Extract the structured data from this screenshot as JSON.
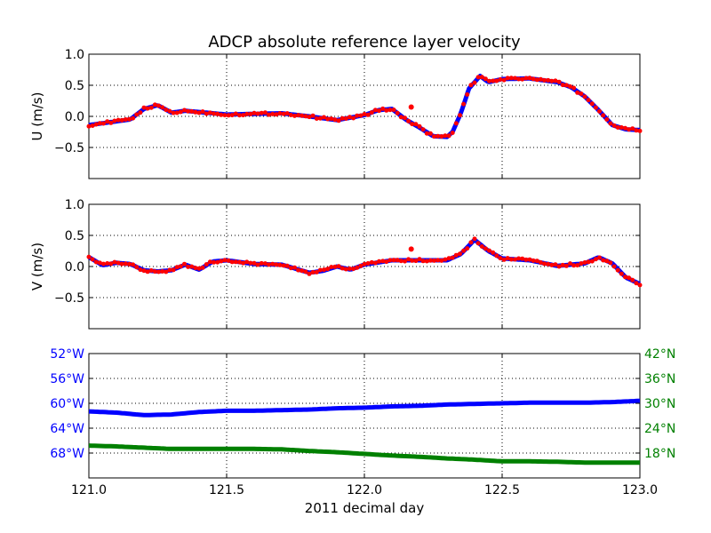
{
  "title": "ADCP absolute reference layer velocity",
  "xlabel": "2011 decimal day",
  "colors": {
    "smooth": "#0000ff",
    "raw": "#ff0000",
    "lon": "#0000ff",
    "lat": "#008000",
    "axis": "#000000"
  },
  "chart_data": [
    {
      "panel": "u",
      "type": "scatter",
      "ylabel": "U (m/s)",
      "xlim": [
        121.0,
        123.0
      ],
      "ylim": [
        -1.0,
        1.0
      ],
      "yticks": [
        -0.5,
        0.0,
        0.5,
        1.0
      ],
      "ytick_labels": [
        "−0.5",
        "0.0",
        "0.5",
        "1.0"
      ],
      "grid": true,
      "series": [
        {
          "style": "dots",
          "color": "#ff0000",
          "x": [
            121.0,
            121.05,
            121.1,
            121.15,
            121.2,
            121.25,
            121.3,
            121.35,
            121.4,
            121.5,
            121.6,
            121.7,
            121.8,
            121.9,
            122.0,
            122.05,
            122.1,
            122.15,
            122.2,
            122.25,
            122.3,
            122.32,
            122.35,
            122.38,
            122.42,
            122.45,
            122.5,
            122.6,
            122.7,
            122.75,
            122.8,
            122.85,
            122.9,
            122.95,
            123.0
          ],
          "y": [
            -0.14,
            -0.11,
            -0.08,
            -0.05,
            0.12,
            0.18,
            0.06,
            0.09,
            0.07,
            0.03,
            0.04,
            0.05,
            0.0,
            -0.06,
            0.02,
            0.1,
            0.12,
            -0.05,
            -0.18,
            -0.32,
            -0.33,
            -0.25,
            0.05,
            0.45,
            0.65,
            0.55,
            0.6,
            0.61,
            0.55,
            0.47,
            0.32,
            0.1,
            -0.14,
            -0.21,
            -0.22
          ]
        },
        {
          "style": "outlier",
          "color": "#ff0000",
          "x": [
            122.17
          ],
          "y": [
            0.15
          ]
        }
      ]
    },
    {
      "panel": "v",
      "type": "scatter",
      "ylabel": "V (m/s)",
      "xlim": [
        121.0,
        123.0
      ],
      "ylim": [
        -1.0,
        1.0
      ],
      "yticks": [
        -0.5,
        0.0,
        0.5,
        1.0
      ],
      "ytick_labels": [
        "−0.5",
        "0.0",
        "0.5",
        "1.0"
      ],
      "grid": true,
      "series": [
        {
          "style": "dots",
          "color": "#ff0000",
          "x": [
            121.0,
            121.05,
            121.1,
            121.15,
            121.2,
            121.25,
            121.3,
            121.35,
            121.4,
            121.45,
            121.5,
            121.6,
            121.7,
            121.8,
            121.85,
            121.9,
            121.95,
            122.0,
            122.1,
            122.2,
            122.3,
            122.35,
            122.4,
            122.45,
            122.5,
            122.6,
            122.7,
            122.8,
            122.85,
            122.9,
            122.95,
            123.0
          ],
          "y": [
            0.15,
            0.02,
            0.06,
            0.04,
            -0.06,
            -0.08,
            -0.06,
            0.03,
            -0.05,
            0.08,
            0.1,
            0.04,
            0.03,
            -0.1,
            -0.07,
            0.0,
            -0.05,
            0.03,
            0.1,
            0.1,
            0.1,
            0.2,
            0.43,
            0.25,
            0.13,
            0.1,
            0.01,
            0.05,
            0.15,
            0.05,
            -0.18,
            -0.28
          ]
        },
        {
          "style": "outlier",
          "color": "#ff0000",
          "x": [
            122.17
          ],
          "y": [
            0.28
          ]
        }
      ]
    },
    {
      "panel": "position",
      "type": "line",
      "xlim": [
        121.0,
        123.0
      ],
      "xticks": [
        121.0,
        121.5,
        122.0,
        122.5,
        123.0
      ],
      "xtick_labels": [
        "121.0",
        "121.5",
        "122.0",
        "122.5",
        "123.0"
      ],
      "grid": true,
      "left_axis": {
        "ylim": [
          72,
          52
        ],
        "yticks": [
          52,
          56,
          60,
          64,
          68
        ],
        "ytick_labels": [
          "52°W",
          "56°W",
          "60°W",
          "64°W",
          "68°W"
        ],
        "color": "#0000ff"
      },
      "right_axis": {
        "ylim": [
          12,
          42
        ],
        "yticks": [
          42,
          36,
          30,
          24,
          18
        ],
        "ytick_labels": [
          "42°N",
          "36°N",
          "30°N",
          "24°N",
          "18°N"
        ],
        "color": "#008000"
      },
      "series": [
        {
          "axis": "left",
          "color": "#0000ff",
          "x": [
            121.0,
            121.1,
            121.2,
            121.3,
            121.4,
            121.5,
            121.6,
            121.7,
            121.8,
            121.9,
            122.0,
            122.1,
            122.2,
            122.3,
            122.4,
            122.5,
            122.6,
            122.7,
            122.8,
            122.9,
            123.0
          ],
          "y": [
            61.3,
            61.5,
            61.9,
            61.8,
            61.4,
            61.2,
            61.2,
            61.1,
            61.0,
            60.8,
            60.7,
            60.5,
            60.4,
            60.2,
            60.1,
            60.0,
            59.9,
            59.9,
            59.9,
            59.8,
            59.6
          ]
        },
        {
          "axis": "right",
          "color": "#008000",
          "x": [
            121.0,
            121.1,
            121.2,
            121.3,
            121.4,
            121.5,
            121.6,
            121.7,
            121.8,
            121.9,
            122.0,
            122.1,
            122.2,
            122.3,
            122.4,
            122.5,
            122.6,
            122.7,
            122.8,
            122.9,
            123.0
          ],
          "y": [
            19.8,
            19.6,
            19.3,
            19.0,
            19.0,
            19.0,
            19.0,
            18.9,
            18.5,
            18.2,
            17.8,
            17.4,
            17.1,
            16.7,
            16.4,
            16.0,
            16.0,
            15.9,
            15.7,
            15.7,
            15.7
          ]
        }
      ]
    }
  ]
}
